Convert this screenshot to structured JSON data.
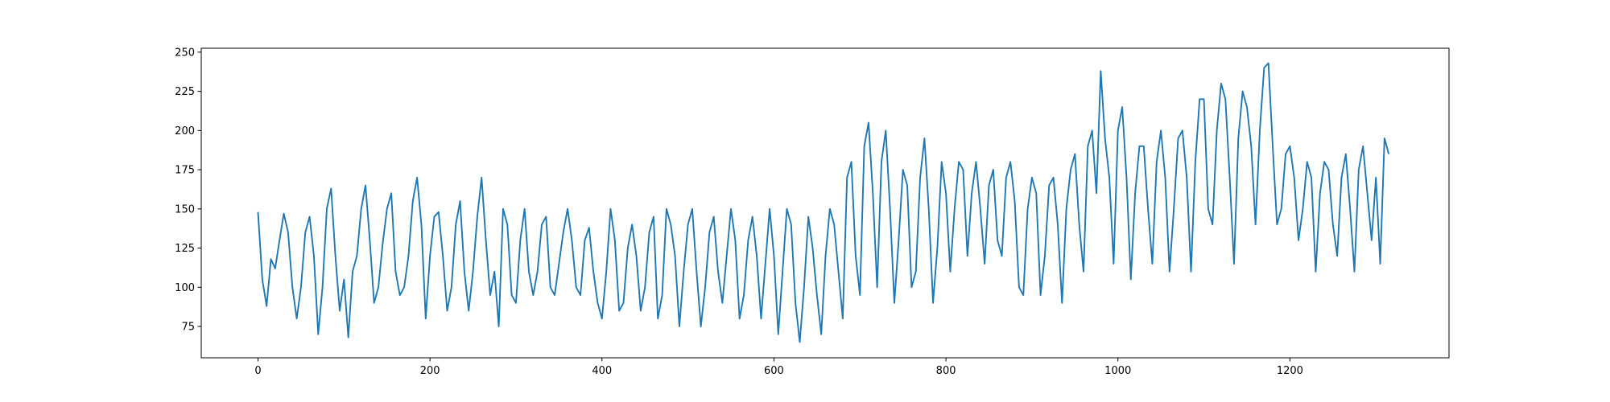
{
  "chart_data": {
    "type": "line",
    "x": [
      0,
      5,
      10,
      15,
      20,
      25,
      30,
      35,
      40,
      45,
      50,
      55,
      60,
      65,
      70,
      75,
      80,
      85,
      90,
      95,
      100,
      105,
      110,
      115,
      120,
      125,
      130,
      135,
      140,
      145,
      150,
      155,
      160,
      165,
      170,
      175,
      180,
      185,
      190,
      195,
      200,
      205,
      210,
      215,
      220,
      225,
      230,
      235,
      240,
      245,
      250,
      255,
      260,
      265,
      270,
      275,
      280,
      285,
      290,
      295,
      300,
      305,
      310,
      315,
      320,
      325,
      330,
      335,
      340,
      345,
      350,
      355,
      360,
      365,
      370,
      375,
      380,
      385,
      390,
      395,
      400,
      405,
      410,
      415,
      420,
      425,
      430,
      435,
      440,
      445,
      450,
      455,
      460,
      465,
      470,
      475,
      480,
      485,
      490,
      495,
      500,
      505,
      510,
      515,
      520,
      525,
      530,
      535,
      540,
      545,
      550,
      555,
      560,
      565,
      570,
      575,
      580,
      585,
      590,
      595,
      600,
      605,
      610,
      615,
      620,
      625,
      630,
      635,
      640,
      645,
      650,
      655,
      660,
      665,
      670,
      675,
      680,
      685,
      690,
      695,
      700,
      705,
      710,
      715,
      720,
      725,
      730,
      735,
      740,
      745,
      750,
      755,
      760,
      765,
      770,
      775,
      780,
      785,
      790,
      795,
      800,
      805,
      810,
      815,
      820,
      825,
      830,
      835,
      840,
      845,
      850,
      855,
      860,
      865,
      870,
      875,
      880,
      885,
      890,
      895,
      900,
      905,
      910,
      915,
      920,
      925,
      930,
      935,
      940,
      945,
      950,
      955,
      960,
      965,
      970,
      975,
      980,
      985,
      990,
      995,
      1000,
      1005,
      1010,
      1015,
      1020,
      1025,
      1030,
      1035,
      1040,
      1045,
      1050,
      1055,
      1060,
      1065,
      1070,
      1075,
      1080,
      1085,
      1090,
      1095,
      1100,
      1105,
      1110,
      1115,
      1120,
      1125,
      1130,
      1135,
      1140,
      1145,
      1150,
      1155,
      1160,
      1165,
      1170,
      1175,
      1180,
      1185,
      1190,
      1195,
      1200,
      1205,
      1210,
      1215,
      1220,
      1225,
      1230,
      1235,
      1240,
      1245,
      1250,
      1255,
      1260,
      1265,
      1270,
      1275,
      1280,
      1285,
      1290,
      1295,
      1300,
      1305,
      1310,
      1315
    ],
    "series": [
      {
        "color": "#1f77b4",
        "values": [
          148,
          105,
          88,
          118,
          112,
          130,
          147,
          135,
          100,
          80,
          100,
          135,
          145,
          120,
          70,
          100,
          150,
          163,
          120,
          85,
          105,
          68,
          110,
          120,
          150,
          165,
          130,
          90,
          100,
          128,
          150,
          160,
          110,
          95,
          100,
          120,
          155,
          170,
          140,
          80,
          120,
          145,
          148,
          120,
          85,
          100,
          140,
          155,
          110,
          85,
          110,
          145,
          170,
          130,
          95,
          110,
          75,
          150,
          140,
          95,
          90,
          130,
          150,
          110,
          95,
          110,
          140,
          145,
          100,
          95,
          115,
          135,
          150,
          130,
          100,
          95,
          130,
          138,
          110,
          90,
          80,
          110,
          150,
          130,
          85,
          90,
          125,
          140,
          120,
          85,
          100,
          135,
          145,
          80,
          95,
          150,
          140,
          120,
          75,
          110,
          140,
          150,
          110,
          75,
          100,
          135,
          145,
          110,
          90,
          120,
          150,
          130,
          80,
          95,
          130,
          145,
          120,
          80,
          115,
          150,
          120,
          70,
          110,
          150,
          140,
          90,
          65,
          100,
          145,
          125,
          95,
          70,
          120,
          150,
          140,
          110,
          80,
          170,
          180,
          120,
          95,
          190,
          205,
          160,
          100,
          180,
          200,
          150,
          90,
          130,
          175,
          165,
          100,
          110,
          170,
          195,
          150,
          90,
          125,
          180,
          160,
          110,
          150,
          180,
          175,
          120,
          160,
          180,
          150,
          115,
          165,
          175,
          130,
          120,
          170,
          180,
          155,
          100,
          95,
          150,
          170,
          160,
          95,
          120,
          165,
          170,
          140,
          90,
          150,
          175,
          185,
          140,
          110,
          190,
          200,
          160,
          238,
          195,
          170,
          115,
          200,
          215,
          170,
          105,
          160,
          190,
          190,
          150,
          115,
          180,
          200,
          170,
          110,
          150,
          195,
          200,
          170,
          110,
          180,
          220,
          220,
          150,
          140,
          200,
          230,
          220,
          170,
          115,
          195,
          225,
          215,
          190,
          140,
          200,
          240,
          243,
          190,
          140,
          150,
          185,
          190,
          170,
          130,
          150,
          180,
          170,
          110,
          160,
          180,
          175,
          140,
          120,
          170,
          185,
          150,
          110,
          175,
          190,
          160,
          130,
          170,
          115,
          195,
          185
        ]
      }
    ],
    "xlim": [
      -66,
      1385
    ],
    "ylim": [
      55,
      252.5
    ],
    "xticks": [
      0,
      200,
      400,
      600,
      800,
      1000,
      1200
    ],
    "yticks": [
      75,
      100,
      125,
      150,
      175,
      200,
      225,
      250
    ],
    "grid": false
  }
}
